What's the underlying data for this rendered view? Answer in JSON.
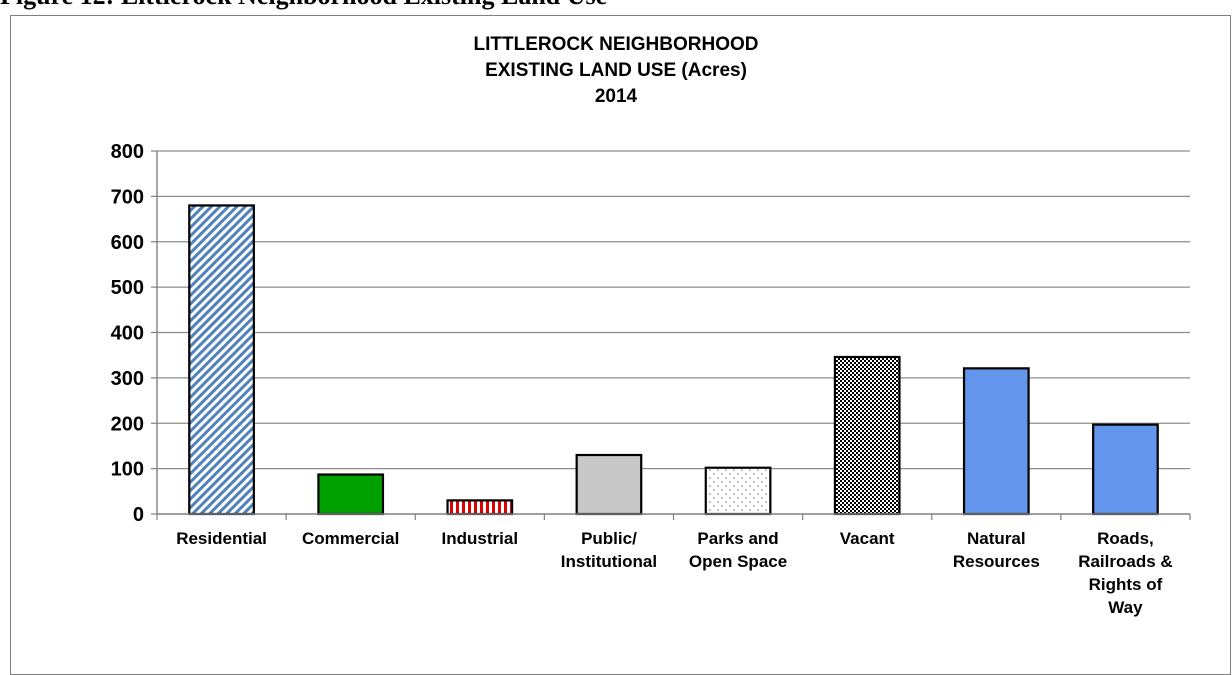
{
  "figure_caption": "Figure 12: Littlerock Neighborhood Existing Land Use",
  "chart_data": {
    "type": "bar",
    "title_lines": [
      "LITTLEROCK NEIGHBORHOOD",
      "EXISTING LAND USE (Acres)",
      "2014"
    ],
    "categories": [
      "Residential",
      "Commercial",
      "Industrial",
      "Public/\nInstitutional",
      "Parks and\nOpen Space",
      "Vacant",
      "Natural\nResources",
      "Roads,\nRailroads &\nRights of\nWay"
    ],
    "values": [
      680,
      87,
      30,
      130,
      102,
      346,
      321,
      197
    ],
    "ylim": [
      0,
      800
    ],
    "yticks": [
      0,
      100,
      200,
      300,
      400,
      500,
      600,
      700,
      800
    ],
    "grid": true,
    "legend": "none",
    "bar_styles": [
      {
        "pattern": "diag-blue",
        "color": "#4f81bd"
      },
      {
        "pattern": "solid",
        "color": "#00a000"
      },
      {
        "pattern": "vstripe-red",
        "color": "#e00000"
      },
      {
        "pattern": "solid",
        "color": "#c8c8c8"
      },
      {
        "pattern": "dots",
        "color": "#808080"
      },
      {
        "pattern": "checker",
        "color": "#000000"
      },
      {
        "pattern": "solid",
        "color": "#6495ed"
      },
      {
        "pattern": "solid",
        "color": "#6495ed"
      }
    ]
  }
}
